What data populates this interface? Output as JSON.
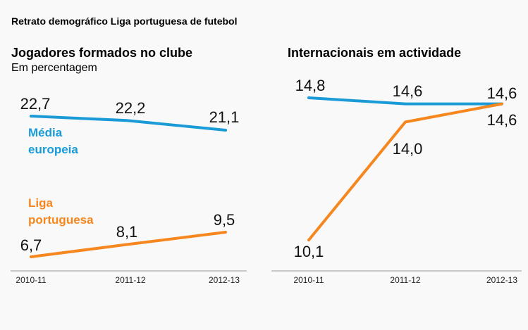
{
  "title": "Retrato demográfico Liga portuguesa de futebol",
  "colors": {
    "europe": "#1a9bd7",
    "portugal": "#f6871f",
    "axis": "#999999"
  },
  "chart_data": [
    {
      "type": "line",
      "title": "Jogadores formados no clube",
      "subtitle": "Em percentagem",
      "categories": [
        "2010-11",
        "2011-12",
        "2012-13"
      ],
      "series": [
        {
          "name": "Média europeia",
          "values": [
            22.7,
            22.2,
            21.1
          ],
          "labels": [
            "22,7",
            "22,2",
            "21,1"
          ]
        },
        {
          "name": "Liga portuguesa",
          "values": [
            6.7,
            8.1,
            9.5
          ],
          "labels": [
            "6,7",
            "8,1",
            "9,5"
          ]
        }
      ]
    },
    {
      "type": "line",
      "title": "Internacionais em actividade",
      "categories": [
        "2010-11",
        "2011-12",
        "2012-13"
      ],
      "series": [
        {
          "values": [
            14.8,
            14.6,
            14.6
          ],
          "labels": [
            "14,8",
            "14,6",
            "14,6"
          ]
        },
        {
          "values": [
            10.1,
            14.0,
            14.6
          ],
          "labels": [
            "10,1",
            "14,0",
            "14,6"
          ]
        }
      ]
    }
  ]
}
